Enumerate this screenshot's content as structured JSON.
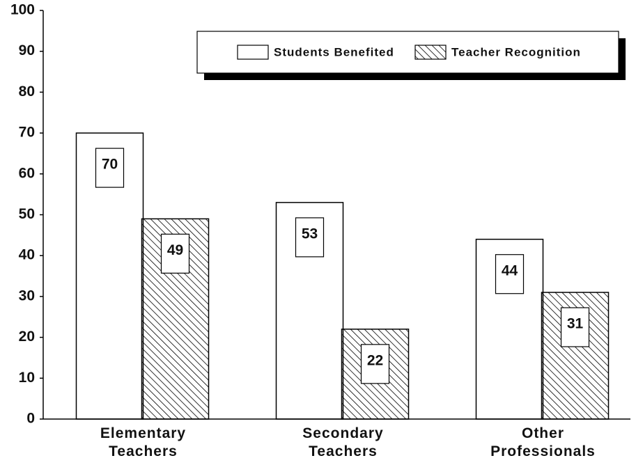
{
  "chart_data": {
    "type": "bar",
    "categories": [
      "Elementary Teachers",
      "Secondary Teachers",
      "Other Professionals"
    ],
    "series": [
      {
        "name": "Students Benefited",
        "color": "#ffffff",
        "values": [
          70,
          53,
          44
        ]
      },
      {
        "name": "Teacher Recognition",
        "color": "#000000",
        "hatch": true,
        "values": [
          49,
          22,
          31
        ]
      }
    ],
    "ylim": [
      0,
      100
    ],
    "yticks": [
      0,
      10,
      20,
      30,
      40,
      50,
      60,
      70,
      80,
      90,
      100
    ],
    "legend": "top-right"
  }
}
